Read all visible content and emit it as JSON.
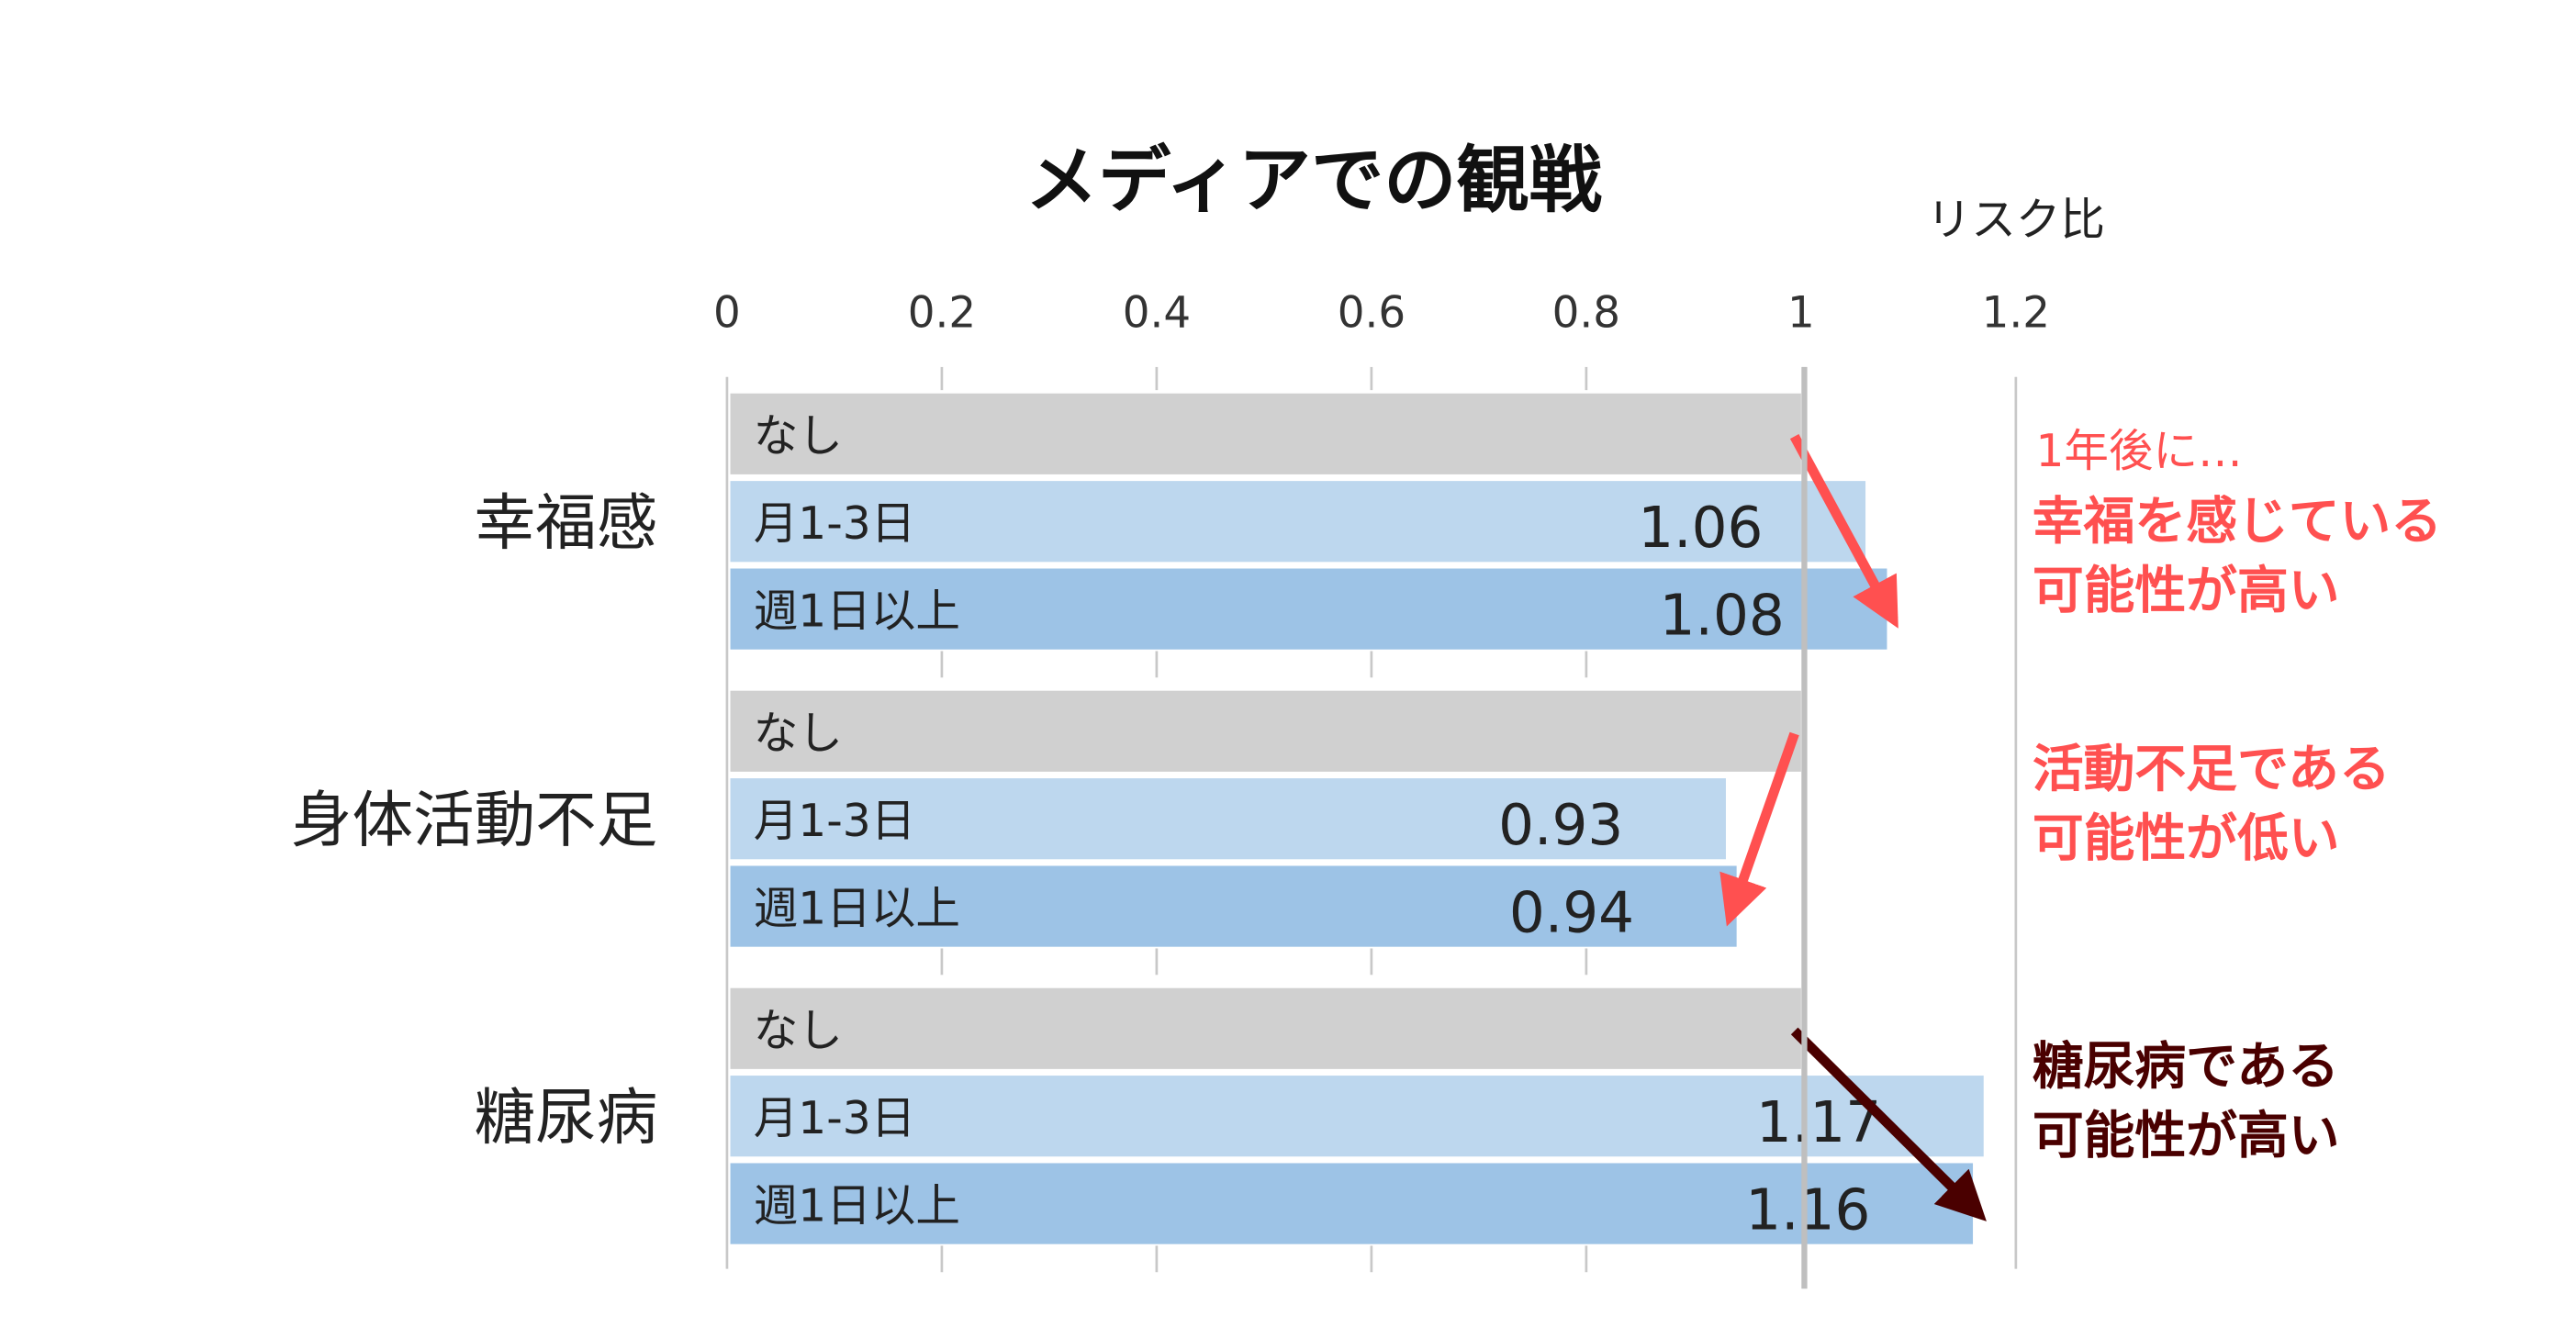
{
  "chart_data": {
    "type": "bar",
    "orientation": "horizontal",
    "title": "メディアでの観戦",
    "xlabel": "リスク比",
    "xlim": [
      0,
      1.2
    ],
    "xticks": [
      "0",
      "0.2",
      "0.4",
      "0.6",
      "0.8",
      "1",
      "1.2"
    ],
    "xtick_values": [
      0,
      0.2,
      0.4,
      0.6,
      0.8,
      1,
      1.2
    ],
    "reference_line": 1,
    "grid": false,
    "groups": [
      {
        "category": "幸福感",
        "bars": [
          {
            "label": "なし",
            "value": 1,
            "value_label": ""
          },
          {
            "label": "月1-3日",
            "value": 1.06,
            "value_label": "1.06"
          },
          {
            "label": "週1日以上",
            "value": 1.08,
            "value_label": "1.08"
          }
        ],
        "trend": "up",
        "arrow_color": "#ff5050",
        "annotation": {
          "color": "#ff5050",
          "lead": "1年後に…",
          "lines": [
            "幸福を感じている",
            "可能性が高い"
          ]
        }
      },
      {
        "category": "身体活動不足",
        "bars": [
          {
            "label": "なし",
            "value": 1,
            "value_label": ""
          },
          {
            "label": "月1-3日",
            "value": 0.93,
            "value_label": "0.93"
          },
          {
            "label": "週1日以上",
            "value": 0.94,
            "value_label": "0.94"
          }
        ],
        "trend": "down",
        "arrow_color": "#ff5050",
        "annotation": {
          "color": "#ff5050",
          "lead": "",
          "lines": [
            "活動不足である",
            "可能性が低い"
          ]
        }
      },
      {
        "category": "糖尿病",
        "bars": [
          {
            "label": "なし",
            "value": 1,
            "value_label": ""
          },
          {
            "label": "月1-3日",
            "value": 1.17,
            "value_label": "1.17"
          },
          {
            "label": "週1日以上",
            "value": 1.16,
            "value_label": "1.16"
          }
        ],
        "trend": "up",
        "arrow_color": "#4a0000",
        "annotation": {
          "color": "#4a0000",
          "lead": "",
          "lines": [
            "糖尿病である",
            "可能性が高い"
          ]
        }
      }
    ],
    "bar_colors": [
      "#d0d0d0",
      "#bdd7ee",
      "#9dc3e6"
    ]
  }
}
